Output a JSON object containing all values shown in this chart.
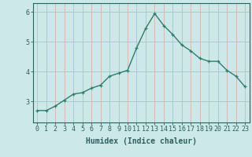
{
  "x": [
    0,
    1,
    2,
    3,
    4,
    5,
    6,
    7,
    8,
    9,
    10,
    11,
    12,
    13,
    14,
    15,
    16,
    17,
    18,
    19,
    20,
    21,
    22,
    23
  ],
  "y": [
    2.7,
    2.7,
    2.85,
    3.05,
    3.25,
    3.3,
    3.45,
    3.55,
    3.85,
    3.95,
    4.05,
    4.8,
    5.45,
    5.95,
    5.55,
    5.25,
    4.9,
    4.7,
    4.45,
    4.35,
    4.35,
    4.05,
    3.85,
    3.5
  ],
  "line_color": "#2e7d6e",
  "marker": "+",
  "marker_color": "#2e7d6e",
  "background_color": "#cce8e8",
  "grid_color": "#b8d8d0",
  "axis_color": "#2e6060",
  "xlabel": "Humidex (Indice chaleur)",
  "xlim": [
    -0.5,
    23.5
  ],
  "ylim": [
    2.3,
    6.3
  ],
  "yticks": [
    3,
    4,
    5,
    6
  ],
  "xticks": [
    0,
    1,
    2,
    3,
    4,
    5,
    6,
    7,
    8,
    9,
    10,
    11,
    12,
    13,
    14,
    15,
    16,
    17,
    18,
    19,
    20,
    21,
    22,
    23
  ],
  "xlabel_fontsize": 7,
  "tick_fontsize": 6,
  "linewidth": 1.0,
  "markersize": 3.5
}
